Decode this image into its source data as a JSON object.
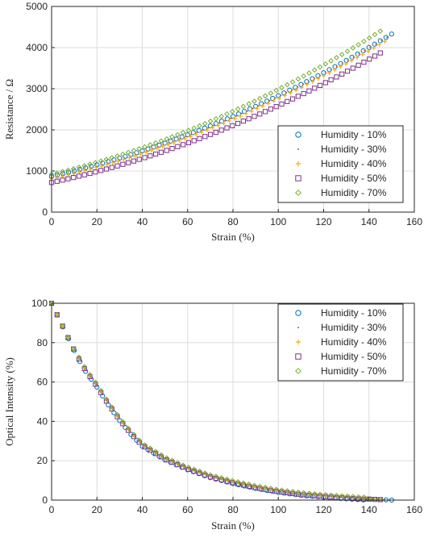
{
  "chart_data": [
    {
      "type": "scatter",
      "title": "",
      "xlabel": "Strain (%)",
      "ylabel": "Resistance / Ω",
      "xlim": [
        0,
        160
      ],
      "ylim": [
        0,
        5000
      ],
      "xticks": [
        "0",
        "20",
        "40",
        "60",
        "80",
        "100",
        "120",
        "140",
        "160"
      ],
      "yticks": [
        "0",
        "1000",
        "2000",
        "3000",
        "4000",
        "5000"
      ],
      "grid": true,
      "legend_position": "bottom-right",
      "series": [
        {
          "name": "Humidity - 10%",
          "marker": "circle",
          "color": "#0072BD",
          "x_max": 150,
          "y_start": 870,
          "y_end": 4330
        },
        {
          "name": "Humidity - 30%",
          "marker": "dot",
          "color": "#D95319",
          "x_max": 148,
          "y_start": 840,
          "y_end": 4250
        },
        {
          "name": "Humidity - 40%",
          "marker": "plus",
          "color": "#EDB120",
          "x_max": 147,
          "y_start": 810,
          "y_end": 4150
        },
        {
          "name": "Humidity - 50%",
          "marker": "square",
          "color": "#7E2F8E",
          "x_max": 145,
          "y_start": 720,
          "y_end": 3870
        },
        {
          "name": "Humidity - 70%",
          "marker": "diamond",
          "color": "#77AC30",
          "x_max": 145,
          "y_start": 920,
          "y_end": 4400
        }
      ]
    },
    {
      "type": "scatter",
      "title": "",
      "xlabel": "Strain (%)",
      "ylabel": "Optical Intensity (%)",
      "xlim": [
        0,
        160
      ],
      "ylim": [
        0,
        100
      ],
      "xticks": [
        "0",
        "20",
        "40",
        "60",
        "80",
        "100",
        "120",
        "140",
        "160"
      ],
      "yticks": [
        "0",
        "20",
        "40",
        "60",
        "80",
        "100"
      ],
      "grid": true,
      "legend_position": "top-right",
      "series": [
        {
          "name": "Humidity - 10%",
          "marker": "circle",
          "color": "#0072BD",
          "x_max": 150
        },
        {
          "name": "Humidity - 30%",
          "marker": "dot",
          "color": "#D95319",
          "x_max": 147
        },
        {
          "name": "Humidity - 40%",
          "marker": "plus",
          "color": "#EDB120",
          "x_max": 146
        },
        {
          "name": "Humidity - 50%",
          "marker": "square",
          "color": "#7E2F8E",
          "x_max": 145
        },
        {
          "name": "Humidity - 70%",
          "marker": "diamond",
          "color": "#77AC30",
          "x_max": 145
        }
      ],
      "curve_points": {
        "x": [
          0,
          5,
          10,
          15,
          20,
          25,
          30,
          35,
          40,
          50,
          60,
          70,
          80,
          90,
          100,
          110,
          120,
          130,
          140,
          150
        ],
        "y": [
          100,
          88,
          76,
          66,
          58,
          49,
          41,
          34,
          28,
          21,
          16,
          12,
          9,
          6.5,
          4.5,
          3,
          2,
          1.2,
          0.5,
          0
        ]
      }
    }
  ]
}
